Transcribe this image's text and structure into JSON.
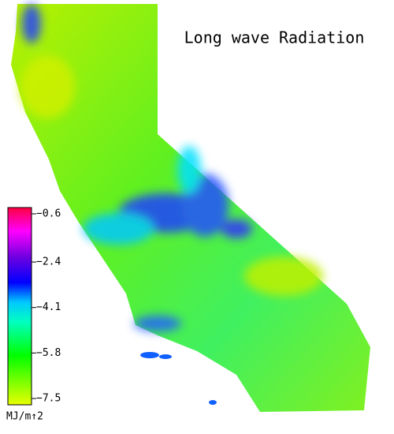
{
  "title": "Long wave Radiation",
  "colorbar": {
    "range": [
      -7.5,
      -0.6
    ],
    "ticks": [
      {
        "value": -0.6,
        "label": "−0.6"
      },
      {
        "value": -2.4,
        "label": "−2.4"
      },
      {
        "value": -4.1,
        "label": "−4.1"
      },
      {
        "value": -5.8,
        "label": "−5.8"
      },
      {
        "value": -7.5,
        "label": "−7.5"
      }
    ],
    "unit": "MJ/m↑2"
  }
}
